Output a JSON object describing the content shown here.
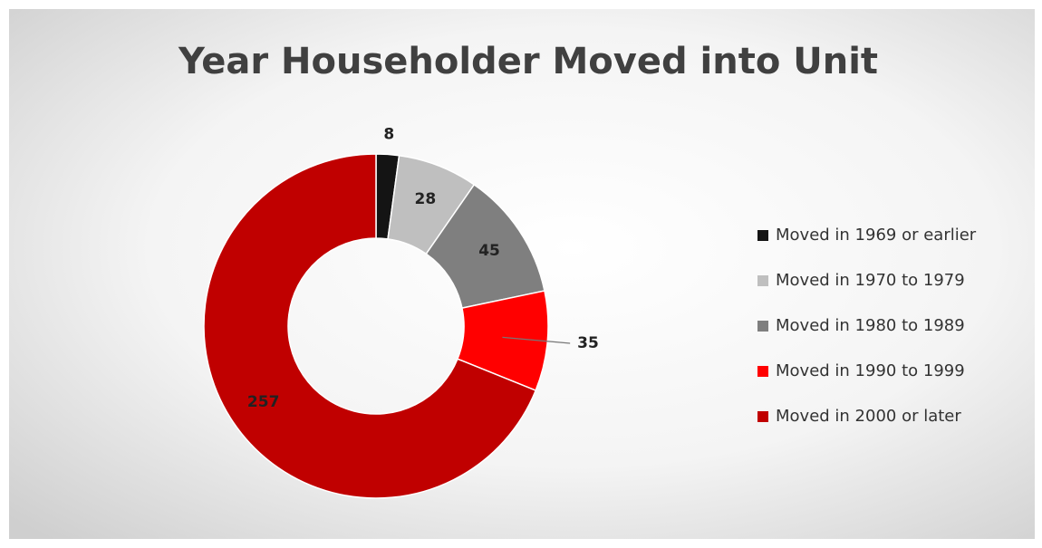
{
  "chart_data": {
    "type": "donut",
    "title": "Year Householder Moved into Unit",
    "categories": [
      "Moved in 1969 or earlier",
      "Moved in 1970 to 1979",
      "Moved in 1980 to 1989",
      "Moved in 1990 to 1999",
      "Moved in 2000 or later"
    ],
    "values": [
      8,
      28,
      45,
      35,
      257
    ],
    "colors": [
      "#141414",
      "#bfbfbf",
      "#7f7f7f",
      "#ff0000",
      "#c00000"
    ],
    "legend": "right"
  }
}
